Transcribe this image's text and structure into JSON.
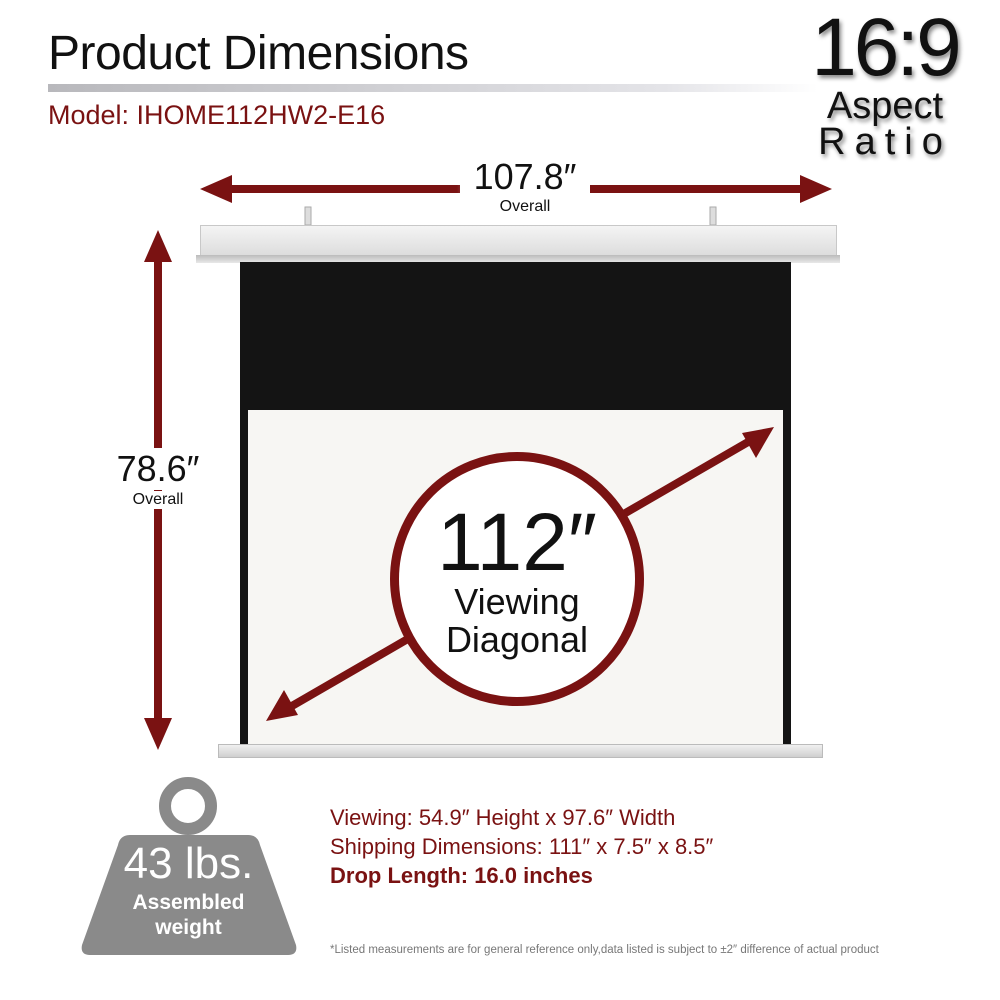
{
  "header": {
    "title": "Product Dimensions",
    "model": "Model: IHOME112HW2-E16"
  },
  "aspect_ratio": {
    "value": "16:9",
    "line1": "Aspect",
    "line2": "Ratio"
  },
  "width": {
    "value": "107.8″",
    "label": "Overall"
  },
  "height": {
    "value": "78.6″",
    "label": "Overall"
  },
  "diagonal": {
    "value": "112″",
    "line1": "Viewing",
    "line2": "Diagonal"
  },
  "weight": {
    "value": "43 lbs.",
    "line1": "Assembled",
    "line2": "weight"
  },
  "specs": {
    "viewing": "Viewing: 54.9″ Height x 97.6″ Width",
    "shipping": "Shipping Dimensions: 111″ x 7.5″ x 8.5″",
    "drop": "Drop Length: 16.0 inches"
  },
  "disclaimer": "*Listed measurements are for general reference only,data listed is subject to ±2″ difference of actual product",
  "colors": {
    "accent": "#7a1212",
    "weight_gray": "#8a8a8a"
  }
}
